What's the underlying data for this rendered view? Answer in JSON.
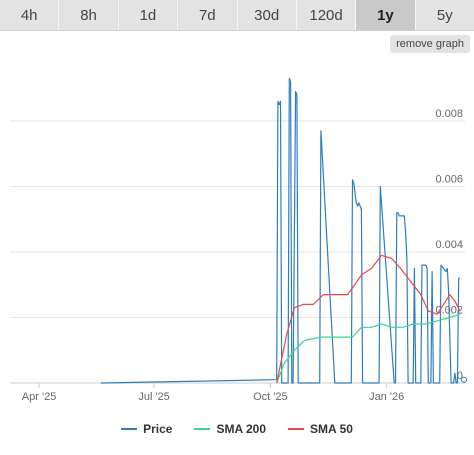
{
  "tabs": [
    {
      "label": "4h",
      "active": false
    },
    {
      "label": "8h",
      "active": false
    },
    {
      "label": "1d",
      "active": false
    },
    {
      "label": "7d",
      "active": false
    },
    {
      "label": "30d",
      "active": false
    },
    {
      "label": "120d",
      "active": false
    },
    {
      "label": "1y",
      "active": true
    },
    {
      "label": "5y",
      "active": false
    }
  ],
  "remove_graph_label": "remove graph",
  "colors": {
    "price": "#2f7ebc",
    "sma200": "#3dd68c",
    "sma50": "#e8484b",
    "grid": "#e6e6e6"
  },
  "chart_data": {
    "type": "line",
    "x_ticks": [
      "Apr '25",
      "Jul '25",
      "Oct '25",
      "Jan '26"
    ],
    "y_ticks": [
      0,
      0.002,
      0.004,
      0.006,
      0.008
    ],
    "xlim": [
      "2025-03-09",
      "2026-03-04"
    ],
    "ylim": [
      0,
      0.0098
    ],
    "grid": "horizontal",
    "legend": "bottom",
    "series": [
      {
        "name": "Price",
        "color_key": "price",
        "x": [
          "2025-05-20",
          "2025-10-06",
          "2025-10-07",
          "2025-10-08",
          "2025-10-09",
          "2025-10-10",
          "2025-10-11",
          "2025-10-14",
          "2025-10-15",
          "2025-10-16",
          "2025-10-17",
          "2025-10-18",
          "2025-10-19",
          "2025-10-21",
          "2025-10-22",
          "2025-10-23",
          "2025-10-25",
          "2025-11-08",
          "2025-11-09",
          "2025-11-10",
          "2025-11-21",
          "2025-11-22",
          "2025-11-23",
          "2025-12-04",
          "2025-12-05",
          "2025-12-06",
          "2025-12-07",
          "2025-12-08",
          "2025-12-09",
          "2025-12-10",
          "2025-12-12",
          "2025-12-13",
          "2025-12-24",
          "2025-12-25",
          "2025-12-26",
          "2025-12-27",
          "2026-01-07",
          "2026-01-08",
          "2026-01-09",
          "2026-01-10",
          "2026-01-11",
          "2026-01-15",
          "2026-01-16",
          "2026-01-17",
          "2026-01-18",
          "2026-01-22",
          "2026-01-23",
          "2026-01-24",
          "2026-01-25",
          "2026-01-28",
          "2026-01-29",
          "2026-02-01",
          "2026-02-02",
          "2026-02-03",
          "2026-02-05",
          "2026-02-06",
          "2026-02-07",
          "2026-02-08",
          "2026-02-12",
          "2026-02-13",
          "2026-02-15",
          "2026-02-17",
          "2026-02-18",
          "2026-02-19",
          "2026-02-21",
          "2026-02-23",
          "2026-02-24",
          "2026-02-25",
          "2026-02-26",
          "2026-02-27",
          "2026-02-28"
        ],
        "y": [
          0.0,
          0.0001,
          0.0086,
          0.0085,
          0.0086,
          0.0,
          0.0,
          0.0,
          0.0,
          0.0093,
          0.0092,
          0.0,
          0.0,
          0.0089,
          0.0088,
          0.0,
          0.0,
          0.0,
          0.0,
          0.0077,
          0.0,
          0.0,
          0.0,
          0.0,
          0.0062,
          0.0061,
          0.0058,
          0.0055,
          0.0054,
          0.0055,
          0.0053,
          0.0,
          0.0,
          0.0,
          0.0,
          0.006,
          0.0,
          0.0,
          0.0052,
          0.0052,
          0.0051,
          0.0051,
          0.0046,
          0.0038,
          0.0,
          0.0,
          0.0035,
          0.0,
          0.0,
          0.0,
          0.0036,
          0.0036,
          0.0035,
          0.0,
          0.0,
          0.0034,
          0.0,
          0.0,
          0.0,
          0.0036,
          0.0035,
          0.0034,
          0.0035,
          0.0028,
          0.0,
          0.0,
          0.0003,
          0.0,
          0.0,
          0.0032,
          0.0032
        ]
      },
      {
        "name": "SMA 200",
        "color_key": "sma200",
        "x": [
          "2025-10-06",
          "2025-10-12",
          "2025-10-20",
          "2025-10-28",
          "2025-11-10",
          "2025-11-20",
          "2025-12-01",
          "2025-12-05",
          "2025-12-12",
          "2025-12-20",
          "2025-12-28",
          "2026-01-05",
          "2026-01-14",
          "2026-01-22",
          "2026-02-01",
          "2026-02-10",
          "2026-02-20",
          "2026-02-28"
        ],
        "y": [
          0.0,
          0.0006,
          0.001,
          0.0013,
          0.0014,
          0.0014,
          0.0014,
          0.0014,
          0.0017,
          0.0017,
          0.0018,
          0.0017,
          0.0017,
          0.0018,
          0.0018,
          0.0019,
          0.002,
          0.0021
        ]
      },
      {
        "name": "SMA 50",
        "color_key": "sma50",
        "x": [
          "2025-10-06",
          "2025-10-14",
          "2025-10-20",
          "2025-10-27",
          "2025-11-04",
          "2025-11-12",
          "2025-11-21",
          "2025-12-01",
          "2025-12-05",
          "2025-12-12",
          "2025-12-20",
          "2025-12-28",
          "2026-01-05",
          "2026-01-12",
          "2026-01-20",
          "2026-01-28",
          "2026-02-03",
          "2026-02-10",
          "2026-02-15",
          "2026-02-20",
          "2026-02-24",
          "2026-02-28"
        ],
        "y": [
          0.0,
          0.0015,
          0.0023,
          0.0024,
          0.0024,
          0.0027,
          0.0027,
          0.0027,
          0.0029,
          0.0033,
          0.0035,
          0.0039,
          0.0038,
          0.0035,
          0.0031,
          0.0027,
          0.0022,
          0.0021,
          0.0024,
          0.0027,
          0.0025,
          0.0022
        ]
      }
    ]
  }
}
